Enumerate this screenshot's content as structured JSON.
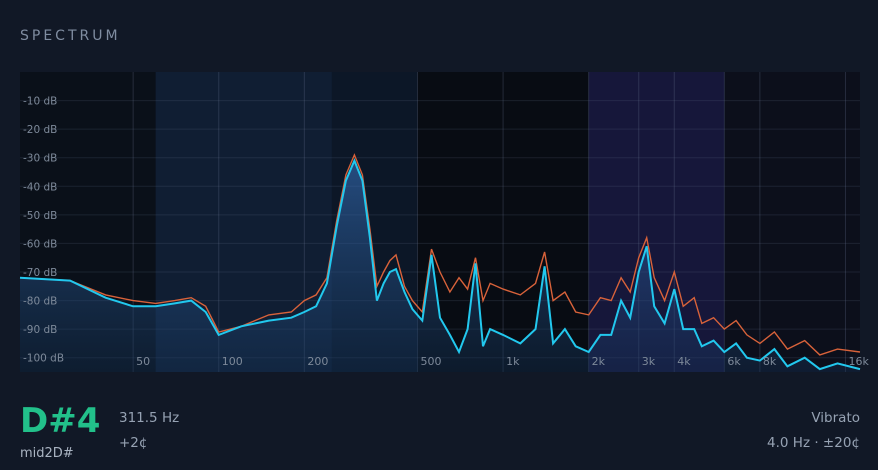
{
  "panel": {
    "title": "SPECTRUM"
  },
  "colors": {
    "primary_line": "#22c8ee",
    "reference_line": "#d8623a",
    "note_green": "#22c08a",
    "background": "#111826",
    "plot_background": "#0b111c"
  },
  "chart_data": {
    "type": "line",
    "title": "",
    "xlabel": "",
    "ylabel": "",
    "x_scale": "log",
    "xlim": [
      20,
      18000
    ],
    "ylim": [
      -105,
      0
    ],
    "y_ticks": [
      {
        "value": -10,
        "label": "-10 dB"
      },
      {
        "value": -20,
        "label": "-20 dB"
      },
      {
        "value": -30,
        "label": "-30 dB"
      },
      {
        "value": -40,
        "label": "-40 dB"
      },
      {
        "value": -50,
        "label": "-50 dB"
      },
      {
        "value": -60,
        "label": "-60 dB"
      },
      {
        "value": -70,
        "label": "-70 dB"
      },
      {
        "value": -80,
        "label": "-80 dB"
      },
      {
        "value": -90,
        "label": "-90 dB"
      },
      {
        "value": -100,
        "label": "-100 dB"
      }
    ],
    "x_ticks": [
      {
        "value": 50,
        "label": "50"
      },
      {
        "value": 100,
        "label": "100"
      },
      {
        "value": 200,
        "label": "200"
      },
      {
        "value": 500,
        "label": "500"
      },
      {
        "value": 1000,
        "label": "1k"
      },
      {
        "value": 2000,
        "label": "2k"
      },
      {
        "value": 3000,
        "label": "3k"
      },
      {
        "value": 4000,
        "label": "4k"
      },
      {
        "value": 6000,
        "label": "6k"
      },
      {
        "value": 8000,
        "label": "8k"
      },
      {
        "value": 16000,
        "label": "16k"
      }
    ],
    "series": [
      {
        "color": "#d8623a",
        "points": [
          [
            20,
            -72
          ],
          [
            30,
            -73
          ],
          [
            40,
            -78
          ],
          [
            50,
            -80
          ],
          [
            60,
            -81
          ],
          [
            70,
            -80
          ],
          [
            80,
            -79
          ],
          [
            90,
            -82
          ],
          [
            100,
            -91
          ],
          [
            120,
            -89
          ],
          [
            150,
            -85
          ],
          [
            180,
            -84
          ],
          [
            200,
            -80
          ],
          [
            220,
            -78
          ],
          [
            240,
            -72
          ],
          [
            260,
            -52
          ],
          [
            280,
            -36
          ],
          [
            300,
            -29
          ],
          [
            320,
            -36
          ],
          [
            340,
            -55
          ],
          [
            360,
            -75
          ],
          [
            380,
            -70
          ],
          [
            400,
            -66
          ],
          [
            420,
            -64
          ],
          [
            450,
            -75
          ],
          [
            480,
            -80
          ],
          [
            520,
            -84
          ],
          [
            560,
            -62
          ],
          [
            600,
            -70
          ],
          [
            650,
            -77
          ],
          [
            700,
            -72
          ],
          [
            750,
            -76
          ],
          [
            800,
            -65
          ],
          [
            850,
            -80
          ],
          [
            900,
            -74
          ],
          [
            1000,
            -76
          ],
          [
            1150,
            -78
          ],
          [
            1300,
            -74
          ],
          [
            1400,
            -63
          ],
          [
            1500,
            -80
          ],
          [
            1650,
            -77
          ],
          [
            1800,
            -84
          ],
          [
            2000,
            -85
          ],
          [
            2200,
            -79
          ],
          [
            2400,
            -80
          ],
          [
            2600,
            -72
          ],
          [
            2800,
            -77
          ],
          [
            3000,
            -65
          ],
          [
            3200,
            -58
          ],
          [
            3400,
            -72
          ],
          [
            3700,
            -80
          ],
          [
            4000,
            -70
          ],
          [
            4300,
            -82
          ],
          [
            4700,
            -79
          ],
          [
            5000,
            -88
          ],
          [
            5500,
            -86
          ],
          [
            6000,
            -90
          ],
          [
            6600,
            -87
          ],
          [
            7200,
            -92
          ],
          [
            8000,
            -95
          ],
          [
            9000,
            -91
          ],
          [
            10000,
            -97
          ],
          [
            11500,
            -94
          ],
          [
            13000,
            -99
          ],
          [
            15000,
            -97
          ],
          [
            18000,
            -98
          ]
        ]
      },
      {
        "color": "#22c8ee",
        "points": [
          [
            20,
            -72
          ],
          [
            30,
            -73
          ],
          [
            40,
            -79
          ],
          [
            50,
            -82
          ],
          [
            60,
            -82
          ],
          [
            70,
            -81
          ],
          [
            80,
            -80
          ],
          [
            90,
            -84
          ],
          [
            100,
            -92
          ],
          [
            120,
            -89
          ],
          [
            150,
            -87
          ],
          [
            180,
            -86
          ],
          [
            200,
            -84
          ],
          [
            220,
            -82
          ],
          [
            240,
            -74
          ],
          [
            260,
            -54
          ],
          [
            280,
            -38
          ],
          [
            300,
            -31
          ],
          [
            320,
            -38
          ],
          [
            340,
            -58
          ],
          [
            360,
            -80
          ],
          [
            380,
            -74
          ],
          [
            400,
            -70
          ],
          [
            420,
            -69
          ],
          [
            450,
            -77
          ],
          [
            480,
            -83
          ],
          [
            520,
            -87
          ],
          [
            560,
            -64
          ],
          [
            600,
            -86
          ],
          [
            650,
            -92
          ],
          [
            700,
            -98
          ],
          [
            750,
            -90
          ],
          [
            800,
            -67
          ],
          [
            850,
            -96
          ],
          [
            900,
            -90
          ],
          [
            1000,
            -92
          ],
          [
            1150,
            -95
          ],
          [
            1300,
            -90
          ],
          [
            1400,
            -68
          ],
          [
            1500,
            -95
          ],
          [
            1650,
            -90
          ],
          [
            1800,
            -96
          ],
          [
            2000,
            -98
          ],
          [
            2200,
            -92
          ],
          [
            2400,
            -92
          ],
          [
            2600,
            -80
          ],
          [
            2800,
            -86
          ],
          [
            3000,
            -70
          ],
          [
            3200,
            -61
          ],
          [
            3400,
            -82
          ],
          [
            3700,
            -88
          ],
          [
            4000,
            -76
          ],
          [
            4300,
            -90
          ],
          [
            4700,
            -90
          ],
          [
            5000,
            -96
          ],
          [
            5500,
            -94
          ],
          [
            6000,
            -98
          ],
          [
            6600,
            -95
          ],
          [
            7200,
            -100
          ],
          [
            8000,
            -101
          ],
          [
            9000,
            -97
          ],
          [
            10000,
            -103
          ],
          [
            11500,
            -100
          ],
          [
            13000,
            -104
          ],
          [
            15000,
            -102
          ],
          [
            18000,
            -104
          ]
        ]
      }
    ],
    "bands": [
      {
        "from": 20,
        "to": 60,
        "color": "#0a1019"
      },
      {
        "from": 60,
        "to": 250,
        "color": "#101e33"
      },
      {
        "from": 250,
        "to": 500,
        "color": "#0c1727"
      },
      {
        "from": 500,
        "to": 2000,
        "color": "#080c13"
      },
      {
        "from": 2000,
        "to": 6000,
        "color": "#16173a"
      },
      {
        "from": 6000,
        "to": 18000,
        "color": "#0c0f1b"
      }
    ]
  },
  "pitch": {
    "note": "D#4",
    "subtitle": "mid2D#",
    "frequency": "311.5 Hz",
    "cents": "+2¢"
  },
  "vibrato": {
    "label": "Vibrato",
    "value": "4.0 Hz  ·  ±20¢"
  }
}
